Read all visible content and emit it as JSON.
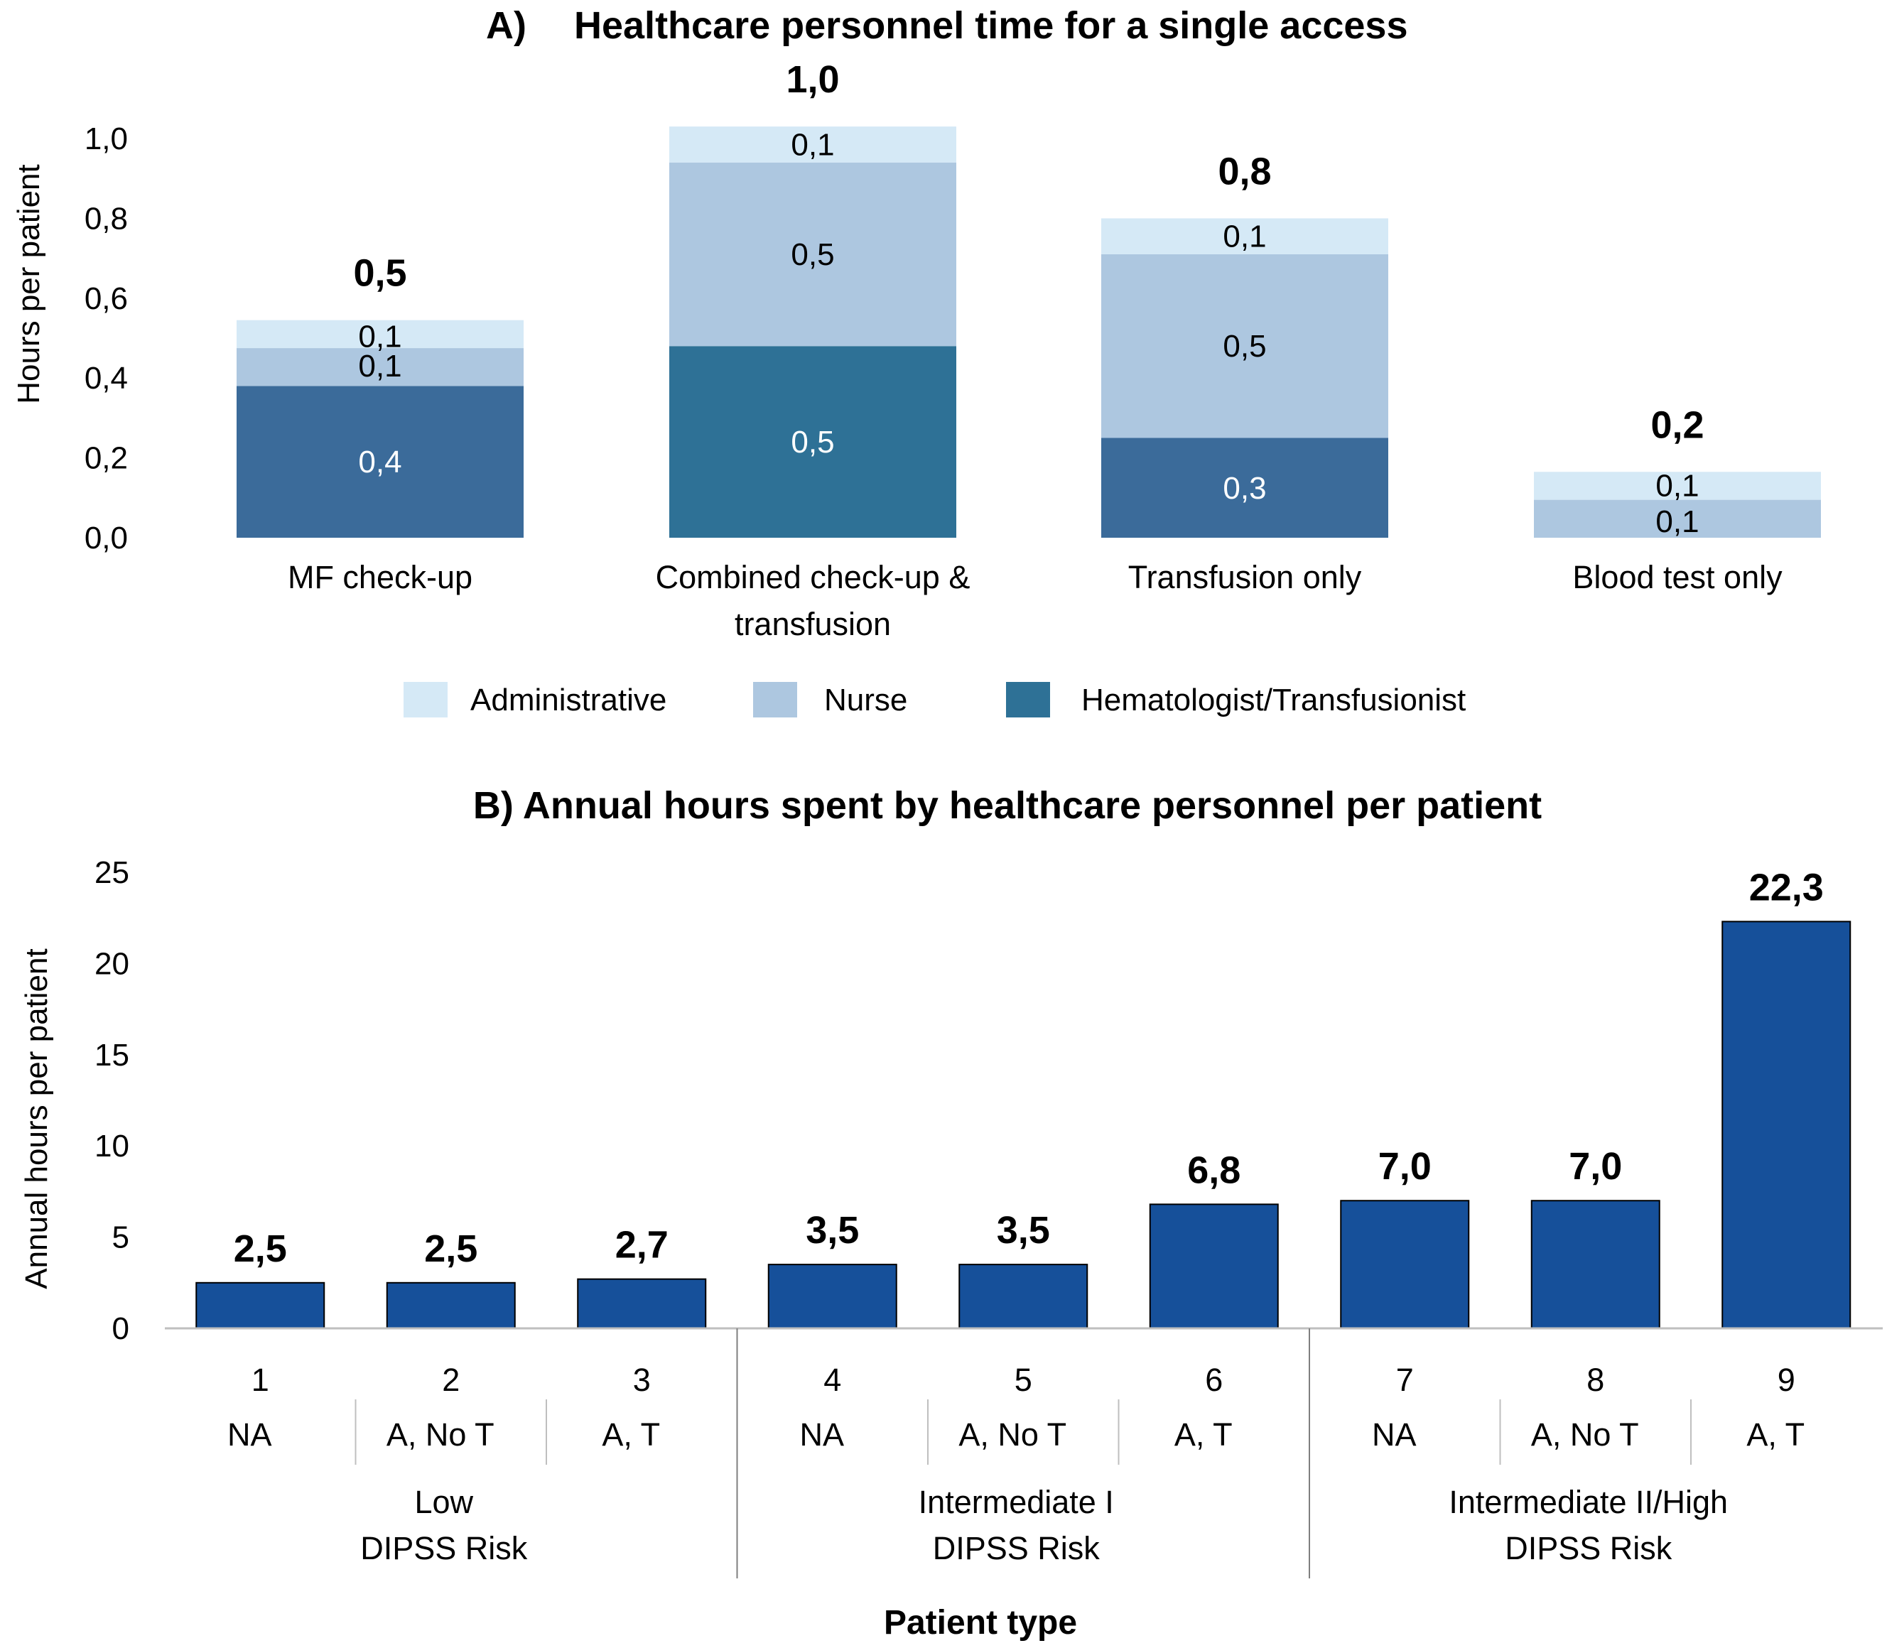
{
  "colors": {
    "administrative": "#d5e9f6",
    "nurse": "#adc7e0",
    "hematologist_check": "#3b6b9a",
    "hematologist_combined": "#2e7196",
    "hematologist_transfusion": "#3b6b9a",
    "panel_b_bar": "#16509a",
    "grid_line": "#bfbfbf",
    "divider": "#7f7f7f"
  },
  "chart_data": [
    {
      "id": "A",
      "type": "bar",
      "stacked": true,
      "title_letter": "A)",
      "title": "Healthcare personnel time for a single access",
      "ylabel": "Hours per patient",
      "xlabel": "",
      "ylim": [
        0,
        1.0
      ],
      "yticks": [
        "0,0",
        "0,2",
        "0,4",
        "0,6",
        "0,8",
        "1,0"
      ],
      "ytick_values": [
        0,
        0.2,
        0.4,
        0.6,
        0.8,
        1.0
      ],
      "categories": [
        [
          "MF check-up"
        ],
        [
          "Combined check-up &",
          "transfusion"
        ],
        [
          "Transfusion only"
        ],
        [
          "Blood test only"
        ]
      ],
      "series": [
        {
          "name": "Hematologist/Transfusionist",
          "color_key": "hematologist_combined",
          "values": [
            0.38,
            0.48,
            0.25,
            0
          ],
          "labels": [
            "0,4",
            "0,5",
            "0,3",
            ""
          ],
          "label_color": "#ffffff"
        },
        {
          "name": "Nurse",
          "color_key": "nurse",
          "values": [
            0.095,
            0.46,
            0.46,
            0.095
          ],
          "labels": [
            "0,1",
            "0,5",
            "0,5",
            "0,1"
          ],
          "label_color": "#000000"
        },
        {
          "name": "Administrative",
          "color_key": "administrative",
          "values": [
            0.07,
            0.09,
            0.09,
            0.07
          ],
          "labels": [
            "0,1",
            "0,1",
            "0,1",
            "0,1"
          ],
          "label_color": "#000000"
        }
      ],
      "totals": [
        "0,5",
        "1,0",
        "0,8",
        "0,2"
      ],
      "legend": [
        "Administrative",
        "Nurse",
        "Hematologist/Transfusionist"
      ],
      "legend_position": "bottom"
    },
    {
      "id": "B",
      "type": "bar",
      "title": "B) Annual hours spent by healthcare personnel per patient",
      "ylabel": "Annual hours per patient",
      "xlabel": "Patient type",
      "ylim": [
        0,
        25
      ],
      "yticks": [
        "0",
        "5",
        "10",
        "15",
        "20",
        "25"
      ],
      "ytick_values": [
        0,
        5,
        10,
        15,
        20,
        25
      ],
      "categories": [
        "1",
        "2",
        "3",
        "4",
        "5",
        "6",
        "7",
        "8",
        "9"
      ],
      "subcategories": [
        "NA",
        "A, No T",
        "A, T",
        "NA",
        "A, No T",
        "A, T",
        "NA",
        "A, No T",
        "A, T"
      ],
      "groups": [
        {
          "lines": [
            "Low",
            "DIPSS Risk"
          ]
        },
        {
          "lines": [
            "Intermediate I",
            "DIPSS Risk"
          ]
        },
        {
          "lines": [
            "Intermediate II/High",
            "DIPSS Risk"
          ]
        }
      ],
      "values": [
        2.5,
        2.5,
        2.7,
        3.5,
        3.5,
        6.8,
        7.0,
        7.0,
        22.3
      ],
      "value_labels": [
        "2,5",
        "2,5",
        "2,7",
        "3,5",
        "3,5",
        "6,8",
        "7,0",
        "7,0",
        "22,3"
      ]
    }
  ]
}
